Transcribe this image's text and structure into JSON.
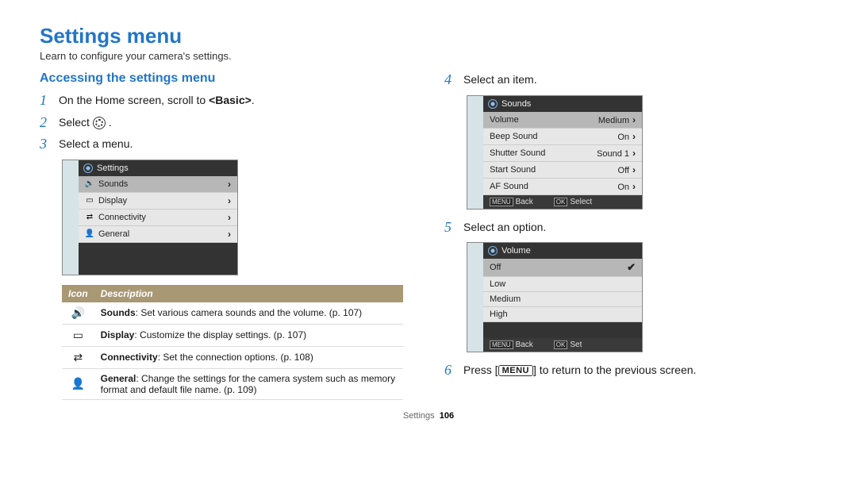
{
  "page": {
    "title": "Settings menu",
    "intro": "Learn to configure your camera's settings.",
    "section_title": "Accessing the settings menu",
    "footer_label": "Settings",
    "footer_page": "106"
  },
  "left_steps": {
    "s1_num": "1",
    "s1_text_a": "On the Home screen, scroll to ",
    "s1_text_b": "<Basic>",
    "s1_text_c": ".",
    "s2_num": "2",
    "s2_text": "Select ",
    "s2_suffix": ".",
    "s3_num": "3",
    "s3_text": "Select a menu."
  },
  "screen1": {
    "header": "Settings",
    "rows": [
      {
        "icon": "🔊",
        "label": "Sounds",
        "selected": true
      },
      {
        "icon": "▭",
        "label": "Display",
        "selected": false
      },
      {
        "icon": "⇄",
        "label": "Connectivity",
        "selected": false
      },
      {
        "icon": "👤",
        "label": "General",
        "selected": false
      }
    ]
  },
  "desc_table": {
    "col1": "Icon",
    "col2": "Description",
    "rows": [
      {
        "icon": "🔊",
        "bold": "Sounds",
        "text": ": Set various camera sounds and the volume. (p. 107)"
      },
      {
        "icon": "▭",
        "bold": "Display",
        "text": ": Customize the display settings. (p. 107)"
      },
      {
        "icon": "⇄",
        "bold": "Connectivity",
        "text": ": Set the connection options. (p. 108)"
      },
      {
        "icon": "👤",
        "bold": "General",
        "text": ": Change the settings for the camera system such as memory format and default file name. (p. 109)"
      }
    ]
  },
  "right_steps": {
    "s4_num": "4",
    "s4_text": "Select an item.",
    "s5_num": "5",
    "s5_text": "Select an option.",
    "s6_num": "6",
    "s6_text_a": "Press [",
    "s6_btn": "MENU",
    "s6_text_b": "] to return to the previous screen."
  },
  "screen2": {
    "header": "Sounds",
    "rows": [
      {
        "label": "Volume",
        "value": "Medium",
        "selected": true
      },
      {
        "label": "Beep Sound",
        "value": "On",
        "selected": false
      },
      {
        "label": "Shutter Sound",
        "value": "Sound 1",
        "selected": false
      },
      {
        "label": "Start Sound",
        "value": "Off",
        "selected": false
      },
      {
        "label": "AF Sound",
        "value": "On",
        "selected": false
      }
    ],
    "footer_back_btn": "MENU",
    "footer_back": "Back",
    "footer_ok_btn": "OK",
    "footer_ok": "Select"
  },
  "screen3": {
    "header": "Volume",
    "options": [
      {
        "label": "Off",
        "selected": true
      },
      {
        "label": "Low",
        "selected": false
      },
      {
        "label": "Medium",
        "selected": false
      },
      {
        "label": "High",
        "selected": false
      }
    ],
    "footer_back_btn": "MENU",
    "footer_back": "Back",
    "footer_ok_btn": "OK",
    "footer_ok": "Set"
  }
}
